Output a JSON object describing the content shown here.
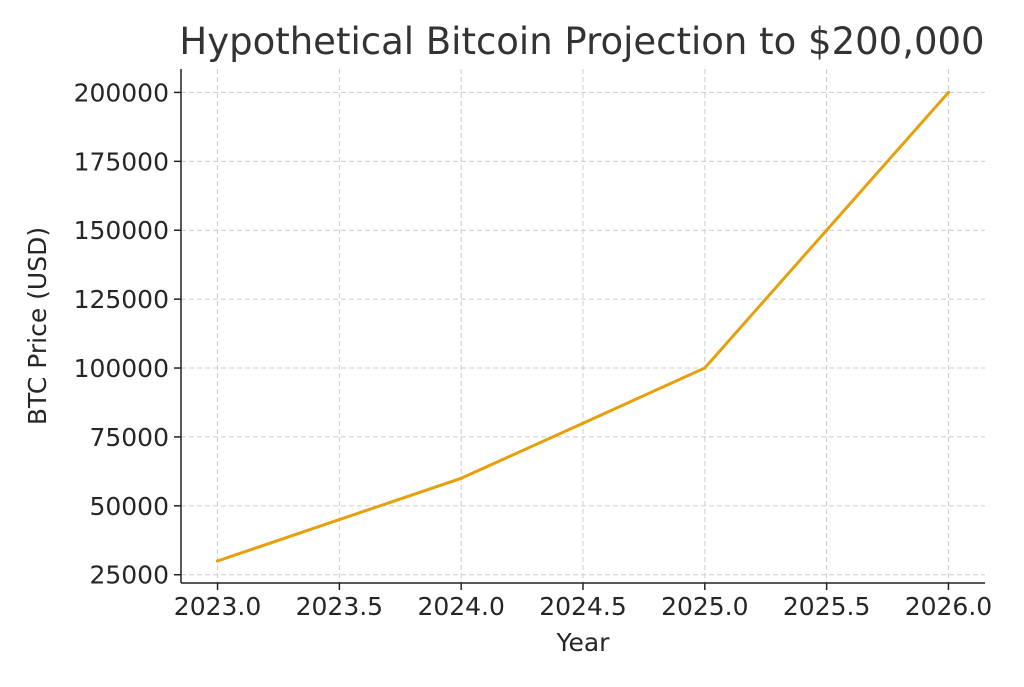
{
  "chart_data": {
    "type": "line",
    "title": "Hypothetical Bitcoin Projection to $200,000",
    "xlabel": "Year",
    "ylabel": "BTC Price (USD)",
    "x": [
      2023,
      2023.5,
      2024,
      2024.5,
      2025,
      2025.5,
      2026
    ],
    "series": [
      {
        "values": [
          30000,
          45000,
          60000,
          80000,
          100000,
          150000,
          200000
        ],
        "color": "#E6A00C"
      }
    ],
    "xlim": [
      2022.85,
      2026.15
    ],
    "ylim": [
      22000,
      208500
    ],
    "xticks": [
      "2023.0",
      "2023.5",
      "2024.0",
      "2024.5",
      "2025.0",
      "2025.5",
      "2026.0"
    ],
    "yticks": [
      "25000",
      "50000",
      "75000",
      "100000",
      "125000",
      "150000",
      "175000",
      "200000"
    ],
    "grid": true,
    "grid_style": "dashed",
    "legend": "none",
    "colors": {
      "line": "#E6A00C",
      "grid": "#CCCCCC",
      "axis": "#222222",
      "text": "#262626"
    }
  }
}
